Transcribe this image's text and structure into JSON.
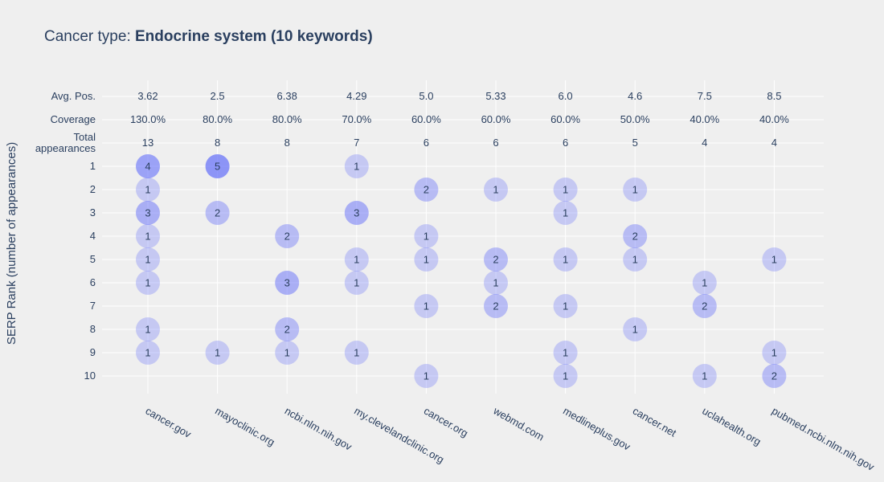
{
  "chart_data": {
    "type": "scatter",
    "title_prefix": "Cancer type: ",
    "title_bold": "Endocrine system (10 keywords)",
    "xlabel": "",
    "ylabel": "SERP Rank (number of appearances)",
    "domains": [
      "cancer.gov",
      "mayoclinic.org",
      "ncbi.nlm.nih.gov",
      "my.clevelandclinic.org",
      "cancer.org",
      "webmd.com",
      "medlineplus.gov",
      "cancer.net",
      "uclahealth.org",
      "pubmed.ncbi.nlm.nih.gov"
    ],
    "row_labels": {
      "avg_pos": "Avg. Pos.",
      "coverage": "Coverage",
      "total": [
        "Total",
        "appearances"
      ]
    },
    "avg_pos": [
      "3.62",
      "2.5",
      "6.38",
      "4.29",
      "5.0",
      "5.33",
      "6.0",
      "4.6",
      "7.5",
      "8.5"
    ],
    "coverage": [
      "130.0%",
      "80.0%",
      "80.0%",
      "70.0%",
      "60.0%",
      "60.0%",
      "60.0%",
      "50.0%",
      "40.0%",
      "40.0%"
    ],
    "total_appearances": [
      "13",
      "8",
      "8",
      "7",
      "6",
      "6",
      "6",
      "5",
      "4",
      "4"
    ],
    "ranks": [
      "1",
      "2",
      "3",
      "4",
      "5",
      "6",
      "7",
      "8",
      "9",
      "10"
    ],
    "points": [
      {
        "domain": "cancer.gov",
        "rank": 1,
        "count": 4
      },
      {
        "domain": "cancer.gov",
        "rank": 2,
        "count": 1
      },
      {
        "domain": "cancer.gov",
        "rank": 3,
        "count": 3
      },
      {
        "domain": "cancer.gov",
        "rank": 4,
        "count": 1
      },
      {
        "domain": "cancer.gov",
        "rank": 5,
        "count": 1
      },
      {
        "domain": "cancer.gov",
        "rank": 6,
        "count": 1
      },
      {
        "domain": "cancer.gov",
        "rank": 8,
        "count": 1
      },
      {
        "domain": "cancer.gov",
        "rank": 9,
        "count": 1
      },
      {
        "domain": "mayoclinic.org",
        "rank": 1,
        "count": 5
      },
      {
        "domain": "mayoclinic.org",
        "rank": 3,
        "count": 2
      },
      {
        "domain": "mayoclinic.org",
        "rank": 9,
        "count": 1
      },
      {
        "domain": "ncbi.nlm.nih.gov",
        "rank": 4,
        "count": 2
      },
      {
        "domain": "ncbi.nlm.nih.gov",
        "rank": 6,
        "count": 3
      },
      {
        "domain": "ncbi.nlm.nih.gov",
        "rank": 8,
        "count": 2
      },
      {
        "domain": "ncbi.nlm.nih.gov",
        "rank": 9,
        "count": 1
      },
      {
        "domain": "my.clevelandclinic.org",
        "rank": 1,
        "count": 1
      },
      {
        "domain": "my.clevelandclinic.org",
        "rank": 3,
        "count": 3
      },
      {
        "domain": "my.clevelandclinic.org",
        "rank": 5,
        "count": 1
      },
      {
        "domain": "my.clevelandclinic.org",
        "rank": 6,
        "count": 1
      },
      {
        "domain": "my.clevelandclinic.org",
        "rank": 9,
        "count": 1
      },
      {
        "domain": "cancer.org",
        "rank": 2,
        "count": 2
      },
      {
        "domain": "cancer.org",
        "rank": 4,
        "count": 1
      },
      {
        "domain": "cancer.org",
        "rank": 5,
        "count": 1
      },
      {
        "domain": "cancer.org",
        "rank": 7,
        "count": 1
      },
      {
        "domain": "cancer.org",
        "rank": 10,
        "count": 1
      },
      {
        "domain": "webmd.com",
        "rank": 2,
        "count": 1
      },
      {
        "domain": "webmd.com",
        "rank": 5,
        "count": 2
      },
      {
        "domain": "webmd.com",
        "rank": 6,
        "count": 1
      },
      {
        "domain": "webmd.com",
        "rank": 7,
        "count": 2
      },
      {
        "domain": "medlineplus.gov",
        "rank": 2,
        "count": 1
      },
      {
        "domain": "medlineplus.gov",
        "rank": 3,
        "count": 1
      },
      {
        "domain": "medlineplus.gov",
        "rank": 5,
        "count": 1
      },
      {
        "domain": "medlineplus.gov",
        "rank": 7,
        "count": 1
      },
      {
        "domain": "medlineplus.gov",
        "rank": 9,
        "count": 1
      },
      {
        "domain": "medlineplus.gov",
        "rank": 10,
        "count": 1
      },
      {
        "domain": "cancer.net",
        "rank": 2,
        "count": 1
      },
      {
        "domain": "cancer.net",
        "rank": 4,
        "count": 2
      },
      {
        "domain": "cancer.net",
        "rank": 5,
        "count": 1
      },
      {
        "domain": "cancer.net",
        "rank": 8,
        "count": 1
      },
      {
        "domain": "uclahealth.org",
        "rank": 6,
        "count": 1
      },
      {
        "domain": "uclahealth.org",
        "rank": 7,
        "count": 2
      },
      {
        "domain": "uclahealth.org",
        "rank": 10,
        "count": 1
      },
      {
        "domain": "pubmed.ncbi.nlm.nih.gov",
        "rank": 5,
        "count": 1
      },
      {
        "domain": "pubmed.ncbi.nlm.nih.gov",
        "rank": 9,
        "count": 1
      },
      {
        "domain": "pubmed.ncbi.nlm.nih.gov",
        "rank": 10,
        "count": 2
      }
    ],
    "colors": {
      "background": "#efefef",
      "grid": "#ffffff",
      "text": "#2a3f5f",
      "bubble": "#636efa"
    },
    "grid": true
  }
}
